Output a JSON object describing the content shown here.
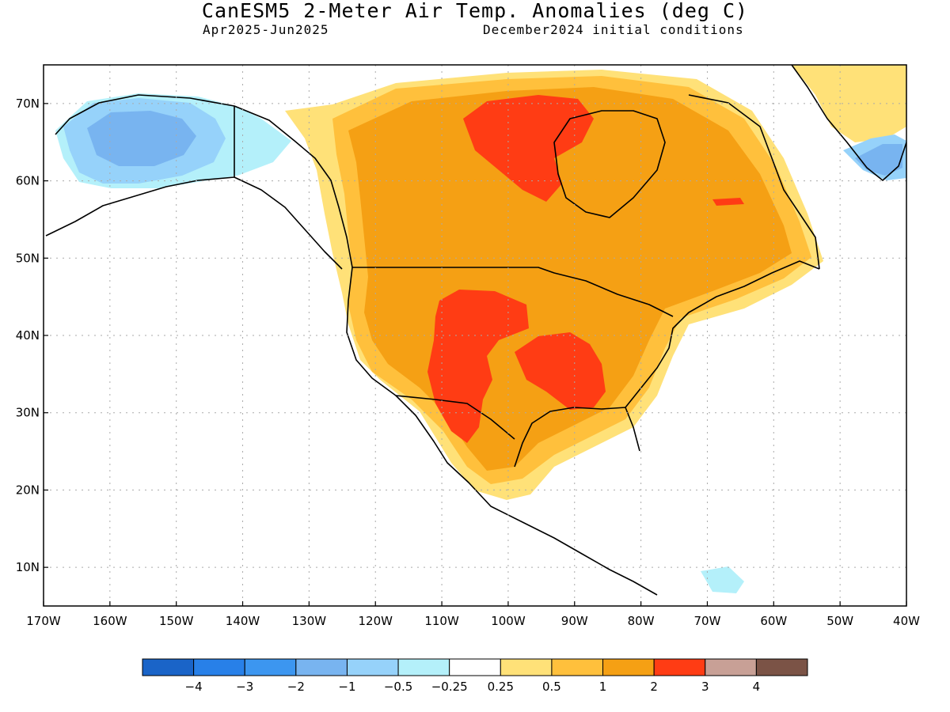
{
  "header": {
    "title": "CanESM5 2-Meter Air Temp. Anomalies (deg C)",
    "period": "Apr2025-Jun2025",
    "init": "December2024 initial conditions"
  },
  "map": {
    "projection": "lat-lon",
    "lon_range": [
      -170,
      -40
    ],
    "lat_range": [
      5,
      75
    ],
    "lat_labels": [
      "70N",
      "60N",
      "50N",
      "40N",
      "30N",
      "20N",
      "10N"
    ],
    "lon_labels": [
      "170W",
      "160W",
      "150W",
      "140W",
      "130W",
      "120W",
      "110W",
      "100W",
      "90W",
      "80W",
      "70W",
      "60W",
      "50W",
      "40W"
    ],
    "grid": "dotted"
  },
  "colorbar": {
    "colors": [
      "#1a64c8",
      "#2880e8",
      "#3c96f0",
      "#78b4f0",
      "#96d2fa",
      "#b4f0fa",
      "#ffffff",
      "#ffe178",
      "#ffc03c",
      "#f5a014",
      "#ff3c14",
      "#c8a096",
      "#7b5346"
    ],
    "labels": [
      "−4",
      "−3",
      "−2",
      "−1",
      "−0.5",
      "−0.25",
      "0.25",
      "0.5",
      "1",
      "2",
      "3",
      "4"
    ]
  }
}
